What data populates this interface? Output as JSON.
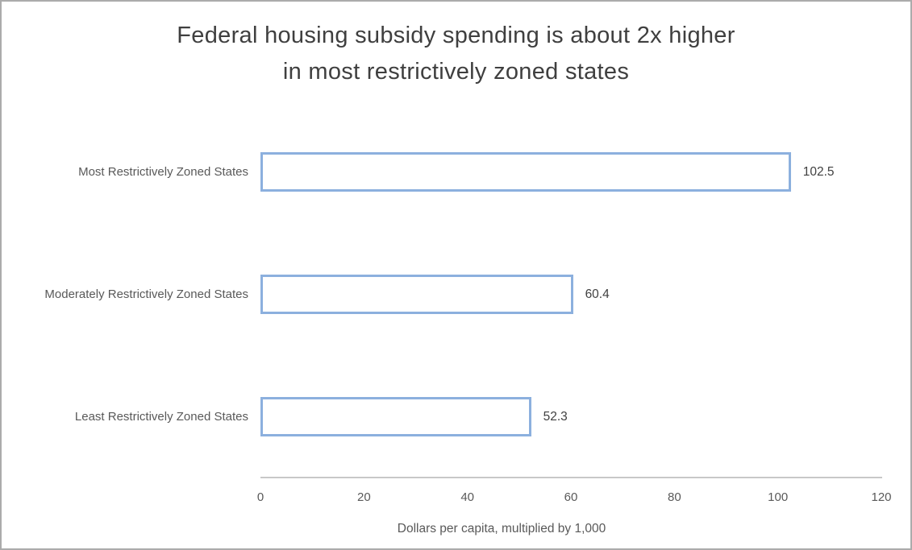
{
  "chart_data": {
    "type": "bar",
    "orientation": "horizontal",
    "title_line1": "Federal housing subsidy spending is about 2x higher",
    "title_line2": "in most restrictively zoned states",
    "categories": [
      "Most Restrictively Zoned States",
      "Moderately Restrictively Zoned States",
      "Least Restrictively Zoned States"
    ],
    "values": [
      102.5,
      60.4,
      52.3
    ],
    "value_labels": [
      "102.5",
      "60.4",
      "52.3"
    ],
    "xlabel": "Dollars per capita, multiplied by 1,000",
    "ylabel": "",
    "xlim": [
      0,
      120
    ],
    "x_tick_values": [
      0,
      20,
      40,
      60,
      80,
      100,
      120
    ],
    "x_tick_labels": [
      "0",
      "20",
      "40",
      "60",
      "80",
      "100",
      "120"
    ],
    "legend": "none",
    "grid": "off",
    "colors": {
      "bar_fill": "#FFFFFF",
      "bar_border": "#8CB0DE",
      "title_text": "#3F3F3F",
      "category_text": "#595959",
      "value_text": "#404040",
      "axis_line": "#C8C8C8",
      "frame_border": "#ABABAB"
    }
  }
}
